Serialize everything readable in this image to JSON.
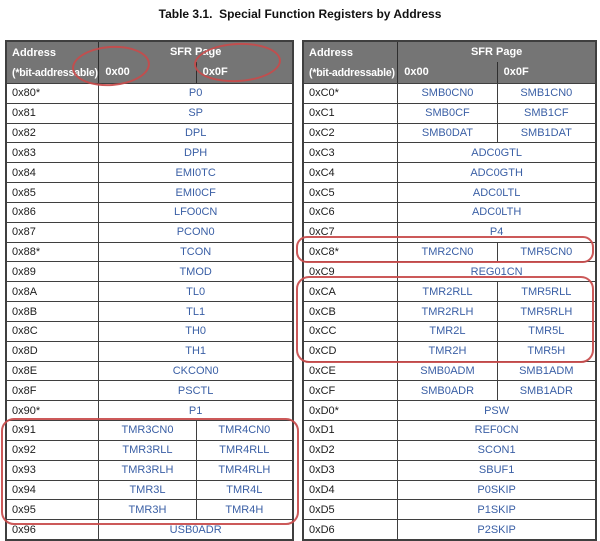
{
  "title": "Table 3.1.  Special Function Registers by Address",
  "colors": {
    "header_bg": "#757575",
    "header_text": "#ffffff",
    "register_text": "#3a5fa5",
    "address_text": "#1c1c1c",
    "border": "#3f3f3f",
    "annotation_red": "#c84b4b"
  },
  "tables": [
    {
      "name": "left",
      "header": {
        "address": "Address",
        "bit_note": "(*bit-addressable)",
        "group": "SFR Page",
        "page0": "0x00",
        "pageF": "0x0F"
      },
      "rows": [
        {
          "address": "0x80*",
          "registers": [
            "P0"
          ]
        },
        {
          "address": "0x81",
          "registers": [
            "SP"
          ]
        },
        {
          "address": "0x82",
          "registers": [
            "DPL"
          ]
        },
        {
          "address": "0x83",
          "registers": [
            "DPH"
          ]
        },
        {
          "address": "0x84",
          "registers": [
            "EMI0TC"
          ]
        },
        {
          "address": "0x85",
          "registers": [
            "EMI0CF"
          ]
        },
        {
          "address": "0x86",
          "registers": [
            "LFO0CN"
          ]
        },
        {
          "address": "0x87",
          "registers": [
            "PCON0"
          ]
        },
        {
          "address": "0x88*",
          "registers": [
            "TCON"
          ]
        },
        {
          "address": "0x89",
          "registers": [
            "TMOD"
          ]
        },
        {
          "address": "0x8A",
          "registers": [
            "TL0"
          ]
        },
        {
          "address": "0x8B",
          "registers": [
            "TL1"
          ]
        },
        {
          "address": "0x8C",
          "registers": [
            "TH0"
          ]
        },
        {
          "address": "0x8D",
          "registers": [
            "TH1"
          ]
        },
        {
          "address": "0x8E",
          "registers": [
            "CKCON0"
          ]
        },
        {
          "address": "0x8F",
          "registers": [
            "PSCTL"
          ]
        },
        {
          "address": "0x90*",
          "registers": [
            "P1"
          ]
        },
        {
          "address": "0x91",
          "registers": [
            "TMR3CN0",
            "TMR4CN0"
          ]
        },
        {
          "address": "0x92",
          "registers": [
            "TMR3RLL",
            "TMR4RLL"
          ]
        },
        {
          "address": "0x93",
          "registers": [
            "TMR3RLH",
            "TMR4RLH"
          ]
        },
        {
          "address": "0x94",
          "registers": [
            "TMR3L",
            "TMR4L"
          ]
        },
        {
          "address": "0x95",
          "registers": [
            "TMR3H",
            "TMR4H"
          ]
        },
        {
          "address": "0x96",
          "registers": [
            "USB0ADR"
          ]
        }
      ]
    },
    {
      "name": "right",
      "header": {
        "address": "Address",
        "bit_note": "(*bit-addressable)",
        "group": "SFR Page",
        "page0": "0x00",
        "pageF": "0x0F"
      },
      "rows": [
        {
          "address": "0xC0*",
          "registers": [
            "SMB0CN0",
            "SMB1CN0"
          ]
        },
        {
          "address": "0xC1",
          "registers": [
            "SMB0CF",
            "SMB1CF"
          ]
        },
        {
          "address": "0xC2",
          "registers": [
            "SMB0DAT",
            "SMB1DAT"
          ]
        },
        {
          "address": "0xC3",
          "registers": [
            "ADC0GTL"
          ]
        },
        {
          "address": "0xC4",
          "registers": [
            "ADC0GTH"
          ]
        },
        {
          "address": "0xC5",
          "registers": [
            "ADC0LTL"
          ]
        },
        {
          "address": "0xC6",
          "registers": [
            "ADC0LTH"
          ]
        },
        {
          "address": "0xC7",
          "registers": [
            "P4"
          ]
        },
        {
          "address": "0xC8*",
          "registers": [
            "TMR2CN0",
            "TMR5CN0"
          ]
        },
        {
          "address": "0xC9",
          "registers": [
            "REG01CN"
          ]
        },
        {
          "address": "0xCA",
          "registers": [
            "TMR2RLL",
            "TMR5RLL"
          ]
        },
        {
          "address": "0xCB",
          "registers": [
            "TMR2RLH",
            "TMR5RLH"
          ]
        },
        {
          "address": "0xCC",
          "registers": [
            "TMR2L",
            "TMR5L"
          ]
        },
        {
          "address": "0xCD",
          "registers": [
            "TMR2H",
            "TMR5H"
          ]
        },
        {
          "address": "0xCE",
          "registers": [
            "SMB0ADM",
            "SMB1ADM"
          ]
        },
        {
          "address": "0xCF",
          "registers": [
            "SMB0ADR",
            "SMB1ADR"
          ]
        },
        {
          "address": "0xD0*",
          "registers": [
            "PSW"
          ]
        },
        {
          "address": "0xD1",
          "registers": [
            "REF0CN"
          ]
        },
        {
          "address": "0xD2",
          "registers": [
            "SCON1"
          ]
        },
        {
          "address": "0xD3",
          "registers": [
            "SBUF1"
          ]
        },
        {
          "address": "0xD4",
          "registers": [
            "P0SKIP"
          ]
        },
        {
          "address": "0xD5",
          "registers": [
            "P1SKIP"
          ]
        },
        {
          "address": "0xD6",
          "registers": [
            "P2SKIP"
          ]
        }
      ]
    }
  ],
  "annotations": [
    {
      "shape": "ellipse",
      "target": "left-header-0x00"
    },
    {
      "shape": "ellipse",
      "target": "left-header-0x0F"
    },
    {
      "shape": "rounded-rect",
      "target": "left-rows-0x91-0x95"
    },
    {
      "shape": "rounded-rect",
      "target": "right-row-0xC8"
    },
    {
      "shape": "rounded-rect",
      "target": "right-rows-0xCA-0xCD"
    }
  ]
}
